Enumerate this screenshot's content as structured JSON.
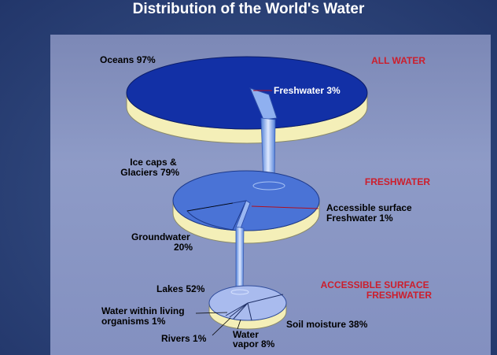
{
  "title": "Distribution of the World's Water",
  "colors": {
    "tier1_top": "#1230a6",
    "tier1_side": "#f4efb8",
    "tier2_top": "#4a73d6",
    "tier2_side": "#f4efb8",
    "tier3_top": "#a9bbee",
    "tier3_side": "#f4efb8",
    "section_label": "#cc1e2c",
    "pipe": "#7fa6ea"
  },
  "chart_data": [
    {
      "type": "pie",
      "title": "ALL WATER",
      "categories": [
        "Oceans",
        "Freshwater"
      ],
      "values": [
        97,
        3
      ],
      "labels": [
        "Oceans 97%",
        "Freshwater 3%"
      ]
    },
    {
      "type": "pie",
      "title": "FRESHWATER",
      "categories": [
        "Ice caps & Glaciers",
        "Groundwater",
        "Accessible surface Freshwater"
      ],
      "values": [
        79,
        20,
        1
      ],
      "labels": [
        "Ice caps &\nGlaciers 79%",
        "Groundwater\n20%",
        "Accessible surface\nFreshwater 1%"
      ]
    },
    {
      "type": "pie",
      "title": "ACCESSIBLE SURFACE\nFRESHWATER",
      "categories": [
        "Lakes",
        "Soil moisture",
        "Water vapor",
        "Rivers",
        "Water within living organisms"
      ],
      "values": [
        52,
        38,
        8,
        1,
        1
      ],
      "labels": [
        "Lakes 52%",
        "Soil moisture 38%",
        "Water\nvapor 8%",
        "Rivers 1%",
        "Water within living\norganisms 1%"
      ]
    }
  ]
}
